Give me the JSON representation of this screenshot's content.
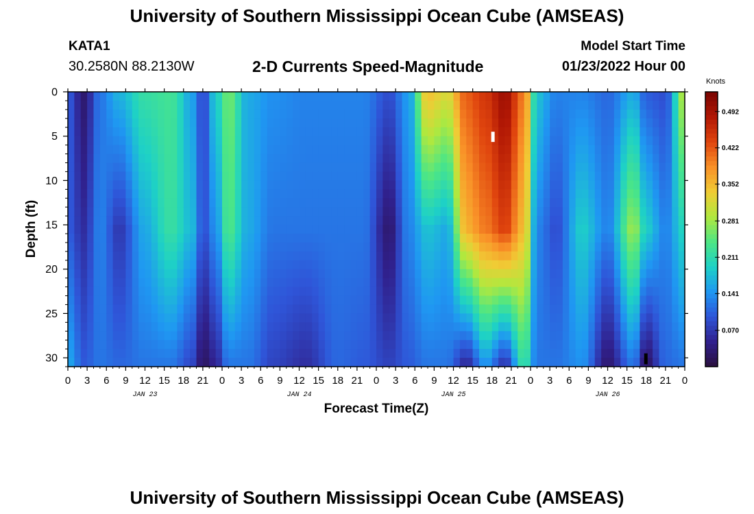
{
  "header": {
    "title": "University of Southern Mississippi Ocean Cube (AMSEAS)",
    "station": "KATA1",
    "coordinates": "30.2580N  88.2130W",
    "subtitle": "2-D Currents Speed-Magnitude",
    "model_start_label": "Model Start Time",
    "model_start_value": "01/23/2022 Hour 00"
  },
  "footer": {
    "repeated_title": "University of Southern Mississippi Ocean Cube (AMSEAS)"
  },
  "colors": {
    "ramp": [
      "#2a0f3d",
      "#30208c",
      "#2f55d8",
      "#1f97f2",
      "#1ed1c6",
      "#4de685",
      "#b1e83e",
      "#f0cc35",
      "#f99128",
      "#e0450e",
      "#b11704",
      "#7a0502"
    ]
  },
  "chart_data": {
    "type": "heatmap",
    "title": "2-D Currents Speed-Magnitude",
    "xlabel": "Forecast Time(Z)",
    "ylabel": "Depth (ft)",
    "x_range_hours": [
      0,
      96
    ],
    "ylim": [
      31,
      0
    ],
    "x_ticks": [
      0,
      3,
      6,
      9,
      12,
      15,
      18,
      21,
      24,
      27,
      30,
      33,
      36,
      39,
      42,
      45,
      48,
      51,
      54,
      57,
      60,
      63,
      66,
      69,
      72,
      75,
      78,
      81,
      84,
      87,
      90,
      93,
      96
    ],
    "x_tick_labels": [
      "0",
      "3",
      "6",
      "9",
      "12",
      "15",
      "18",
      "21",
      "0",
      "3",
      "6",
      "9",
      "12",
      "15",
      "18",
      "21",
      "0",
      "3",
      "6",
      "9",
      "12",
      "15",
      "18",
      "21",
      "0",
      "3",
      "6",
      "9",
      "12",
      "15",
      "18",
      "21",
      "0"
    ],
    "day_labels": [
      {
        "text": "JAN 23",
        "hour": 12
      },
      {
        "text": "JAN 24",
        "hour": 36
      },
      {
        "text": "JAN 25",
        "hour": 60
      },
      {
        "text": "JAN 26",
        "hour": 84
      }
    ],
    "y_ticks": [
      0,
      5,
      10,
      15,
      20,
      25,
      30
    ],
    "y_tick_labels": [
      "0",
      "5",
      "10",
      "15",
      "20",
      "25",
      "30"
    ],
    "colorbar": {
      "unit": "Knots",
      "range": [
        0,
        0.53
      ],
      "ticks": [
        0.07,
        0.141,
        0.211,
        0.281,
        0.352,
        0.422,
        0.492
      ],
      "tick_labels": [
        "0.070",
        "0.141",
        "0.211",
        "0.281",
        "0.352",
        "0.422",
        "0.492"
      ]
    },
    "speed_keyframes_knots": [
      {
        "hour": 0,
        "top": 0.1,
        "mid": 0.1,
        "bot": 0.16
      },
      {
        "hour": 2.5,
        "top": 0.03,
        "mid": 0.06,
        "bot": 0.1
      },
      {
        "hour": 5,
        "top": 0.12,
        "mid": 0.13,
        "bot": 0.12
      },
      {
        "hour": 8,
        "top": 0.17,
        "mid": 0.07,
        "bot": 0.11
      },
      {
        "hour": 12,
        "top": 0.22,
        "mid": 0.16,
        "bot": 0.12
      },
      {
        "hour": 16,
        "top": 0.23,
        "mid": 0.22,
        "bot": 0.12
      },
      {
        "hour": 19.5,
        "top": 0.15,
        "mid": 0.17,
        "bot": 0.08
      },
      {
        "hour": 21,
        "top": 0.08,
        "mid": 0.09,
        "bot": 0.02
      },
      {
        "hour": 23,
        "top": 0.19,
        "mid": 0.14,
        "bot": 0.05
      },
      {
        "hour": 25,
        "top": 0.26,
        "mid": 0.24,
        "bot": 0.12
      },
      {
        "hour": 28,
        "top": 0.16,
        "mid": 0.16,
        "bot": 0.12
      },
      {
        "hour": 32,
        "top": 0.14,
        "mid": 0.12,
        "bot": 0.08
      },
      {
        "hour": 37,
        "top": 0.13,
        "mid": 0.12,
        "bot": 0.06
      },
      {
        "hour": 42,
        "top": 0.13,
        "mid": 0.12,
        "bot": 0.11
      },
      {
        "hour": 46,
        "top": 0.13,
        "mid": 0.12,
        "bot": 0.1
      },
      {
        "hour": 50,
        "top": 0.09,
        "mid": 0.03,
        "bot": 0.08
      },
      {
        "hour": 53,
        "top": 0.15,
        "mid": 0.13,
        "bot": 0.1
      },
      {
        "hour": 56,
        "top": 0.35,
        "mid": 0.18,
        "bot": 0.12
      },
      {
        "hour": 59,
        "top": 0.32,
        "mid": 0.16,
        "bot": 0.12
      },
      {
        "hour": 62,
        "top": 0.42,
        "mid": 0.36,
        "bot": 0.05
      },
      {
        "hour": 65,
        "top": 0.45,
        "mid": 0.4,
        "bot": 0.14
      },
      {
        "hour": 68,
        "top": 0.5,
        "mid": 0.44,
        "bot": 0.06
      },
      {
        "hour": 71,
        "top": 0.4,
        "mid": 0.35,
        "bot": 0.22
      },
      {
        "hour": 73,
        "top": 0.18,
        "mid": 0.13,
        "bot": 0.12
      },
      {
        "hour": 76,
        "top": 0.13,
        "mid": 0.09,
        "bot": 0.12
      },
      {
        "hour": 80,
        "top": 0.13,
        "mid": 0.19,
        "bot": 0.14
      },
      {
        "hour": 84,
        "top": 0.11,
        "mid": 0.13,
        "bot": 0.03
      },
      {
        "hour": 88,
        "top": 0.16,
        "mid": 0.28,
        "bot": 0.12
      },
      {
        "hour": 90,
        "top": 0.1,
        "mid": 0.19,
        "bot": 0.02
      },
      {
        "hour": 93,
        "top": 0.09,
        "mid": 0.13,
        "bot": 0.11
      },
      {
        "hour": 96,
        "top": 0.3,
        "mid": 0.2,
        "bot": 0.12
      }
    ]
  }
}
